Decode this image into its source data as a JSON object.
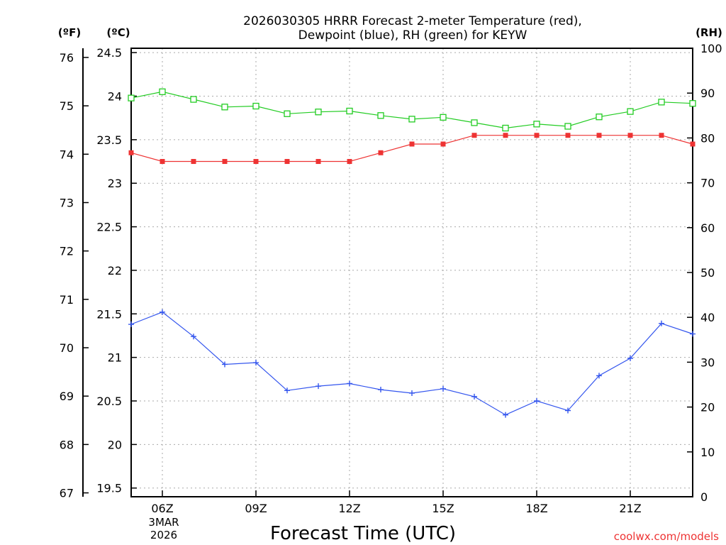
{
  "chart_data": {
    "type": "line",
    "title_line1": "2026030305 HRRR Forecast 2-meter Temperature (red),",
    "title_line2": "Dewpoint (blue), RH (green) for KEYW",
    "xlabel": "Forecast Time (UTC)",
    "date_label": [
      "3MAR",
      "2026"
    ],
    "credit": "coolwx.com/models",
    "axis_units": {
      "fahrenheit": "(ºF)",
      "celsius": "(ºC)",
      "rh": "(RH)"
    },
    "hours": [
      5,
      6,
      7,
      8,
      9,
      10,
      11,
      12,
      13,
      14,
      15,
      16,
      17,
      18,
      19,
      20,
      21,
      22,
      23
    ],
    "x_ticks": [
      {
        "hour": 6,
        "label": "06Z"
      },
      {
        "hour": 9,
        "label": "09Z"
      },
      {
        "hour": 12,
        "label": "12Z"
      },
      {
        "hour": 15,
        "label": "15Z"
      },
      {
        "hour": 18,
        "label": "18Z"
      },
      {
        "hour": 21,
        "label": "21Z"
      }
    ],
    "xlim": [
      5,
      23
    ],
    "celsius_ylim": [
      19.4,
      24.55
    ],
    "celsius_ticks": [
      "19.5",
      "20",
      "20.5",
      "21",
      "21.5",
      "22",
      "22.5",
      "23",
      "23.5",
      "24",
      "24.5"
    ],
    "fahrenheit_ticks": [
      "67",
      "68",
      "69",
      "70",
      "71",
      "72",
      "73",
      "74",
      "75",
      "76"
    ],
    "rh_ylim": [
      0,
      100
    ],
    "rh_ticks": [
      "0",
      "10",
      "20",
      "30",
      "40",
      "50",
      "60",
      "70",
      "80",
      "90",
      "100"
    ],
    "colors": {
      "temperature": "#ee3333",
      "dewpoint": "#3355ee",
      "rh": "#22cc22",
      "grid": "#aaaaaa"
    },
    "series": [
      {
        "name": "Temperature",
        "axis": "celsius",
        "marker": "square-filled",
        "color": "#ee3333",
        "values": [
          23.35,
          23.25,
          23.25,
          23.25,
          23.25,
          23.25,
          23.25,
          23.25,
          23.35,
          23.45,
          23.45,
          23.55,
          23.55,
          23.55,
          23.55,
          23.55,
          23.55,
          23.55,
          23.45
        ]
      },
      {
        "name": "Dewpoint",
        "axis": "celsius",
        "marker": "plus",
        "color": "#3355ee",
        "values": [
          21.38,
          21.52,
          21.24,
          20.92,
          20.94,
          20.62,
          20.67,
          20.7,
          20.63,
          20.59,
          20.64,
          20.55,
          20.34,
          20.5,
          20.39,
          20.79,
          20.99,
          21.39,
          21.27
        ]
      },
      {
        "name": "RH",
        "axis": "rh",
        "marker": "square-open",
        "color": "#22cc22",
        "values": [
          88.9,
          90.3,
          88.6,
          86.9,
          87.1,
          85.4,
          85.8,
          86.0,
          85.0,
          84.2,
          84.6,
          83.4,
          82.2,
          83.1,
          82.6,
          84.7,
          85.9,
          88.0,
          87.7
        ]
      }
    ]
  }
}
